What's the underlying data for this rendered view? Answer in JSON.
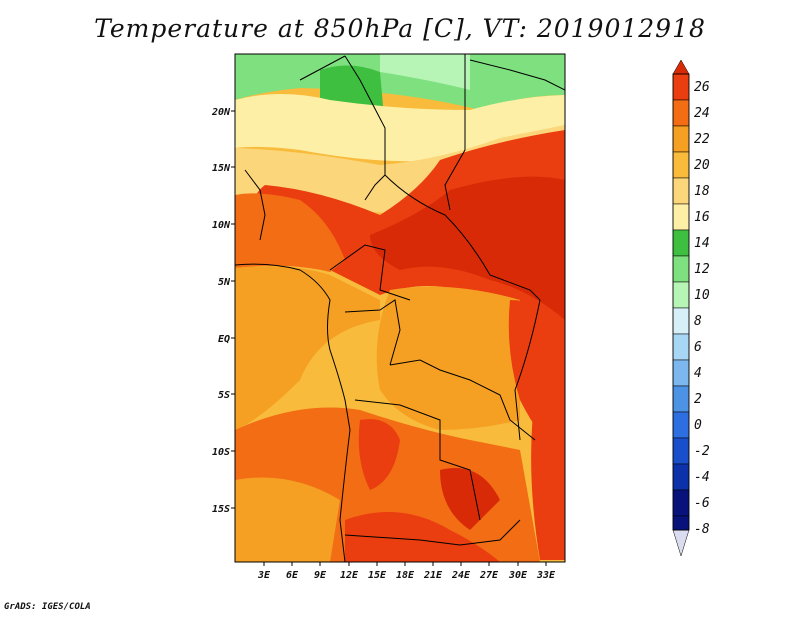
{
  "title": "Temperature at 850hPa [C], VT: 2019012918",
  "credit": "GrADS: IGES/COLA",
  "lat_ticks": [
    "20N",
    "15N",
    "10N",
    "5N",
    "EQ",
    "5S",
    "10S",
    "15S"
  ],
  "lon_ticks": [
    "3E",
    "6E",
    "9E",
    "12E",
    "15E",
    "18E",
    "21E",
    "24E",
    "27E",
    "30E",
    "33E"
  ],
  "colorbar": {
    "levels": [
      "26",
      "24",
      "22",
      "20",
      "18",
      "16",
      "14",
      "12",
      "10",
      "8",
      "6",
      "4",
      "2",
      "0",
      "-2",
      "-4",
      "-6",
      "-8"
    ],
    "colors": [
      "#d92a08",
      "#ea3d10",
      "#f26d14",
      "#f5a023",
      "#f8bb3c",
      "#fcd67a",
      "#fdf0a6",
      "#3fbf3f",
      "#7fe07f",
      "#b6f5b6",
      "#d7f0f8",
      "#a8d6f5",
      "#7cb7ef",
      "#4c93e6",
      "#2d6ee0",
      "#1a4fcc",
      "#0d31a8",
      "#07127a",
      "#dcdcf0"
    ]
  }
}
